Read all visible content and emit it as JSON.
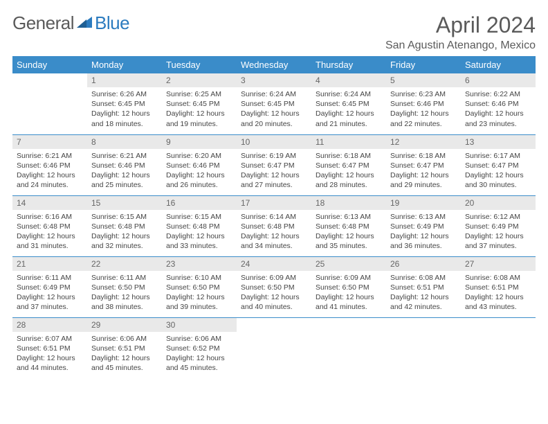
{
  "logo": {
    "text1": "General",
    "text2": "Blue"
  },
  "title": "April 2024",
  "location": "San Agustin Atenango, Mexico",
  "colors": {
    "header_bg": "#3a8cc9",
    "header_text": "#ffffff",
    "daynum_bg": "#e9e9e9",
    "daynum_text": "#666666",
    "body_text": "#444444",
    "rule": "#3a8cc9",
    "logo_accent": "#2b7bbf"
  },
  "weekdays": [
    "Sunday",
    "Monday",
    "Tuesday",
    "Wednesday",
    "Thursday",
    "Friday",
    "Saturday"
  ],
  "weeks": [
    [
      {
        "n": "",
        "sr": "",
        "ss": "",
        "dl": ""
      },
      {
        "n": "1",
        "sr": "Sunrise: 6:26 AM",
        "ss": "Sunset: 6:45 PM",
        "dl": "Daylight: 12 hours and 18 minutes."
      },
      {
        "n": "2",
        "sr": "Sunrise: 6:25 AM",
        "ss": "Sunset: 6:45 PM",
        "dl": "Daylight: 12 hours and 19 minutes."
      },
      {
        "n": "3",
        "sr": "Sunrise: 6:24 AM",
        "ss": "Sunset: 6:45 PM",
        "dl": "Daylight: 12 hours and 20 minutes."
      },
      {
        "n": "4",
        "sr": "Sunrise: 6:24 AM",
        "ss": "Sunset: 6:45 PM",
        "dl": "Daylight: 12 hours and 21 minutes."
      },
      {
        "n": "5",
        "sr": "Sunrise: 6:23 AM",
        "ss": "Sunset: 6:46 PM",
        "dl": "Daylight: 12 hours and 22 minutes."
      },
      {
        "n": "6",
        "sr": "Sunrise: 6:22 AM",
        "ss": "Sunset: 6:46 PM",
        "dl": "Daylight: 12 hours and 23 minutes."
      }
    ],
    [
      {
        "n": "7",
        "sr": "Sunrise: 6:21 AM",
        "ss": "Sunset: 6:46 PM",
        "dl": "Daylight: 12 hours and 24 minutes."
      },
      {
        "n": "8",
        "sr": "Sunrise: 6:21 AM",
        "ss": "Sunset: 6:46 PM",
        "dl": "Daylight: 12 hours and 25 minutes."
      },
      {
        "n": "9",
        "sr": "Sunrise: 6:20 AM",
        "ss": "Sunset: 6:46 PM",
        "dl": "Daylight: 12 hours and 26 minutes."
      },
      {
        "n": "10",
        "sr": "Sunrise: 6:19 AM",
        "ss": "Sunset: 6:47 PM",
        "dl": "Daylight: 12 hours and 27 minutes."
      },
      {
        "n": "11",
        "sr": "Sunrise: 6:18 AM",
        "ss": "Sunset: 6:47 PM",
        "dl": "Daylight: 12 hours and 28 minutes."
      },
      {
        "n": "12",
        "sr": "Sunrise: 6:18 AM",
        "ss": "Sunset: 6:47 PM",
        "dl": "Daylight: 12 hours and 29 minutes."
      },
      {
        "n": "13",
        "sr": "Sunrise: 6:17 AM",
        "ss": "Sunset: 6:47 PM",
        "dl": "Daylight: 12 hours and 30 minutes."
      }
    ],
    [
      {
        "n": "14",
        "sr": "Sunrise: 6:16 AM",
        "ss": "Sunset: 6:48 PM",
        "dl": "Daylight: 12 hours and 31 minutes."
      },
      {
        "n": "15",
        "sr": "Sunrise: 6:15 AM",
        "ss": "Sunset: 6:48 PM",
        "dl": "Daylight: 12 hours and 32 minutes."
      },
      {
        "n": "16",
        "sr": "Sunrise: 6:15 AM",
        "ss": "Sunset: 6:48 PM",
        "dl": "Daylight: 12 hours and 33 minutes."
      },
      {
        "n": "17",
        "sr": "Sunrise: 6:14 AM",
        "ss": "Sunset: 6:48 PM",
        "dl": "Daylight: 12 hours and 34 minutes."
      },
      {
        "n": "18",
        "sr": "Sunrise: 6:13 AM",
        "ss": "Sunset: 6:48 PM",
        "dl": "Daylight: 12 hours and 35 minutes."
      },
      {
        "n": "19",
        "sr": "Sunrise: 6:13 AM",
        "ss": "Sunset: 6:49 PM",
        "dl": "Daylight: 12 hours and 36 minutes."
      },
      {
        "n": "20",
        "sr": "Sunrise: 6:12 AM",
        "ss": "Sunset: 6:49 PM",
        "dl": "Daylight: 12 hours and 37 minutes."
      }
    ],
    [
      {
        "n": "21",
        "sr": "Sunrise: 6:11 AM",
        "ss": "Sunset: 6:49 PM",
        "dl": "Daylight: 12 hours and 37 minutes."
      },
      {
        "n": "22",
        "sr": "Sunrise: 6:11 AM",
        "ss": "Sunset: 6:50 PM",
        "dl": "Daylight: 12 hours and 38 minutes."
      },
      {
        "n": "23",
        "sr": "Sunrise: 6:10 AM",
        "ss": "Sunset: 6:50 PM",
        "dl": "Daylight: 12 hours and 39 minutes."
      },
      {
        "n": "24",
        "sr": "Sunrise: 6:09 AM",
        "ss": "Sunset: 6:50 PM",
        "dl": "Daylight: 12 hours and 40 minutes."
      },
      {
        "n": "25",
        "sr": "Sunrise: 6:09 AM",
        "ss": "Sunset: 6:50 PM",
        "dl": "Daylight: 12 hours and 41 minutes."
      },
      {
        "n": "26",
        "sr": "Sunrise: 6:08 AM",
        "ss": "Sunset: 6:51 PM",
        "dl": "Daylight: 12 hours and 42 minutes."
      },
      {
        "n": "27",
        "sr": "Sunrise: 6:08 AM",
        "ss": "Sunset: 6:51 PM",
        "dl": "Daylight: 12 hours and 43 minutes."
      }
    ],
    [
      {
        "n": "28",
        "sr": "Sunrise: 6:07 AM",
        "ss": "Sunset: 6:51 PM",
        "dl": "Daylight: 12 hours and 44 minutes."
      },
      {
        "n": "29",
        "sr": "Sunrise: 6:06 AM",
        "ss": "Sunset: 6:51 PM",
        "dl": "Daylight: 12 hours and 45 minutes."
      },
      {
        "n": "30",
        "sr": "Sunrise: 6:06 AM",
        "ss": "Sunset: 6:52 PM",
        "dl": "Daylight: 12 hours and 45 minutes."
      },
      {
        "n": "",
        "sr": "",
        "ss": "",
        "dl": ""
      },
      {
        "n": "",
        "sr": "",
        "ss": "",
        "dl": ""
      },
      {
        "n": "",
        "sr": "",
        "ss": "",
        "dl": ""
      },
      {
        "n": "",
        "sr": "",
        "ss": "",
        "dl": ""
      }
    ]
  ]
}
